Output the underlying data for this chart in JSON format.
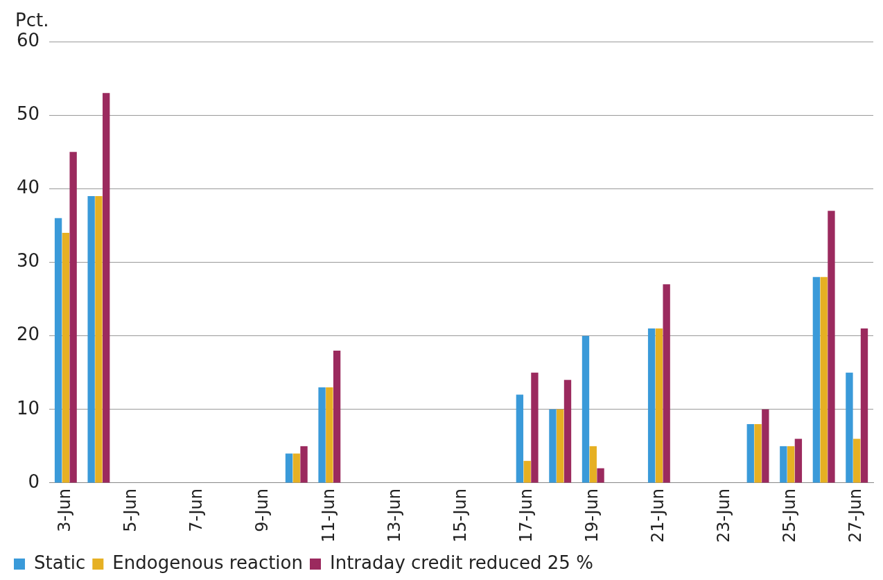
{
  "chart_data": {
    "type": "bar",
    "ylabel": "Pct.",
    "categories": [
      "3-Jun",
      null,
      "5-Jun",
      null,
      "7-Jun",
      null,
      "9-Jun",
      null,
      "11-Jun",
      null,
      "13-Jun",
      null,
      "15-Jun",
      null,
      "17-Jun",
      null,
      "19-Jun",
      null,
      "21-Jun",
      null,
      "23-Jun",
      null,
      "25-Jun",
      null,
      "27-Jun"
    ],
    "series": [
      {
        "name": "Static",
        "color": "#3a9ad9",
        "values": [
          36,
          39,
          null,
          null,
          null,
          null,
          null,
          4,
          13,
          null,
          null,
          null,
          null,
          null,
          12,
          10,
          20,
          null,
          21,
          null,
          null,
          8,
          5,
          28,
          15
        ]
      },
      {
        "name": "Endogenous reaction",
        "color": "#e6b023",
        "values": [
          34,
          39,
          null,
          null,
          null,
          null,
          null,
          4,
          13,
          null,
          null,
          null,
          null,
          null,
          3,
          10,
          5,
          null,
          21,
          null,
          null,
          8,
          5,
          28,
          6
        ]
      },
      {
        "name": "Intraday credit reduced 25 %",
        "color": "#9b2a5e",
        "values": [
          45,
          53,
          null,
          null,
          null,
          null,
          null,
          5,
          18,
          null,
          null,
          null,
          null,
          null,
          15,
          14,
          2,
          null,
          27,
          null,
          null,
          10,
          6,
          37,
          21
        ]
      }
    ],
    "ylim": [
      0,
      60
    ],
    "yticks": [
      0,
      10,
      20,
      30,
      40,
      50,
      60
    ],
    "grid": "y",
    "legend": "bottom left"
  }
}
